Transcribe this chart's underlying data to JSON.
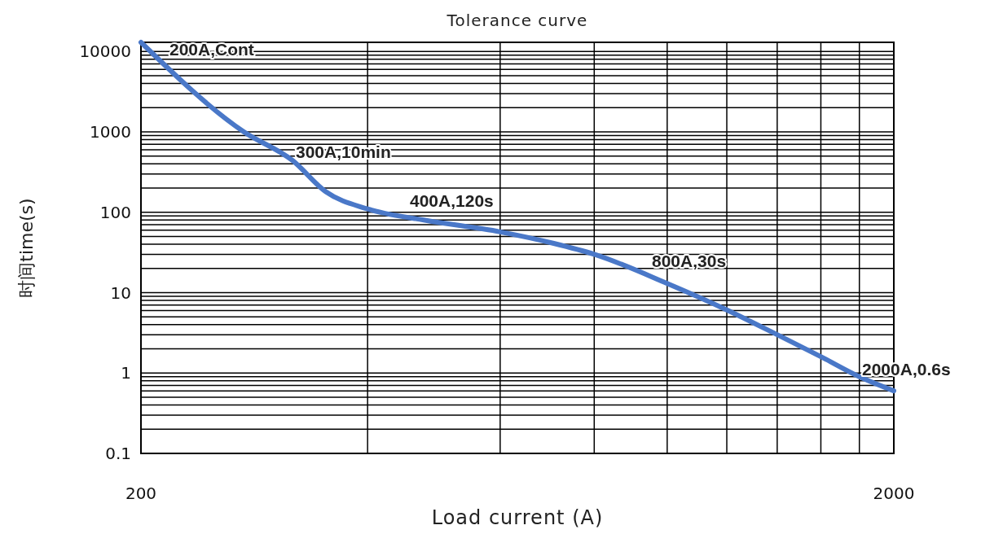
{
  "chart_data": {
    "type": "line",
    "title": "Tolerance curve",
    "xlabel": "Load current (A)",
    "ylabel": "时间time(s)",
    "log": "xy",
    "grid": true,
    "line_style": "solid",
    "xlim": [
      200,
      2000
    ],
    "ylim": [
      0.1,
      13000
    ],
    "xticks": [
      200,
      {
        "value": 400,
        "label": null
      },
      {
        "value": 600,
        "label": null
      },
      {
        "value": 800,
        "label": null
      },
      {
        "value": 1000,
        "label": null
      },
      {
        "value": 1200,
        "label": null
      },
      {
        "value": 1400,
        "label": null
      },
      {
        "value": 1600,
        "label": null
      },
      {
        "value": 1800,
        "label": null
      },
      2000
    ],
    "yticks": [
      0.1,
      {
        "value": 0.2,
        "label": null
      },
      {
        "value": 0.3,
        "label": null
      },
      {
        "value": 0.4,
        "label": null
      },
      {
        "value": 0.5,
        "label": null
      },
      {
        "value": 0.6,
        "label": null
      },
      {
        "value": 0.7,
        "label": null
      },
      {
        "value": 0.8,
        "label": null
      },
      {
        "value": 0.9,
        "label": null
      },
      1,
      {
        "value": 2,
        "label": null
      },
      {
        "value": 3,
        "label": null
      },
      {
        "value": 4,
        "label": null
      },
      {
        "value": 5,
        "label": null
      },
      {
        "value": 6,
        "label": null
      },
      {
        "value": 7,
        "label": null
      },
      {
        "value": 8,
        "label": null
      },
      {
        "value": 9,
        "label": null
      },
      10,
      {
        "value": 20,
        "label": null
      },
      {
        "value": 30,
        "label": null
      },
      {
        "value": 40,
        "label": null
      },
      {
        "value": 50,
        "label": null
      },
      {
        "value": 60,
        "label": null
      },
      {
        "value": 70,
        "label": null
      },
      {
        "value": 80,
        "label": null
      },
      {
        "value": 90,
        "label": null
      },
      100,
      {
        "value": 200,
        "label": null
      },
      {
        "value": 300,
        "label": null
      },
      {
        "value": 400,
        "label": null
      },
      {
        "value": 500,
        "label": null
      },
      {
        "value": 600,
        "label": null
      },
      {
        "value": 700,
        "label": null
      },
      {
        "value": 800,
        "label": null
      },
      {
        "value": 900,
        "label": null
      },
      1000,
      {
        "value": 2000,
        "label": null
      },
      {
        "value": 3000,
        "label": null
      },
      {
        "value": 4000,
        "label": null
      },
      {
        "value": 5000,
        "label": null
      },
      {
        "value": 6000,
        "label": null
      },
      {
        "value": 7000,
        "label": null
      },
      {
        "value": 8000,
        "label": null
      },
      {
        "value": 9000,
        "label": null
      },
      10000
    ],
    "series": [
      {
        "color": "#4a78c8",
        "x": [
          200,
          274,
          318,
          352,
          400,
          475,
          600,
          707,
          800,
          1000,
          1200,
          1400,
          1600,
          1800,
          2000
        ],
        "values": [
          13000,
          1000,
          440,
          180,
          110,
          80,
          57,
          41,
          30,
          13,
          6.1,
          3,
          1.6,
          0.9,
          0.6
        ]
      }
    ],
    "annotations": [
      "200A,Cont",
      "300A,10min",
      "400A,120s",
      "800A,30s",
      "2000A,0.6s"
    ]
  }
}
